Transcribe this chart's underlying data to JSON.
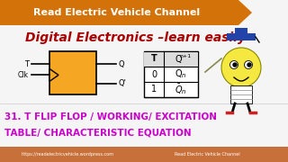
{
  "bg_color": "#f5f5f5",
  "header_bg": "#d4720a",
  "header_text": "Read Electric Vehicle Channel",
  "header_text_color": "#ffffff",
  "title_text": "Digital Electronics –learn easily",
  "title_color": "#aa0000",
  "subtitle_line1": "31. T FLIP FLOP / WORKING/ EXCITATION",
  "subtitle_line2": "TABLE/ CHARACTERISTIC EQUATION",
  "subtitle_color": "#cc00cc",
  "footer_text_left": "https://readelectricvehicle.wordpress.com",
  "footer_text_right": "Read Electric Vehicle Channel",
  "footer_bg": "#c8703a",
  "footer_color": "#ffffff",
  "flip_flop_color": "#f5a623",
  "header_arrow_color": "#d4720a",
  "table_bg": "#ffffff",
  "table_header_bg": "#e8e8e8"
}
